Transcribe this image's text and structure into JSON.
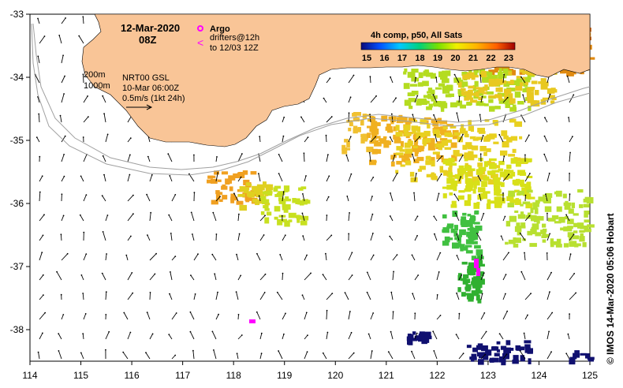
{
  "map": {
    "date": "12-Mar-2020",
    "time": "08Z",
    "argo_label": "Argo",
    "drifters_line1": "drifters@12h",
    "drifters_line2": "to 12/03 12Z",
    "contour_200": "200m",
    "contour_1000": "1000m",
    "current_source": "NRT00 GSL",
    "current_date": "10-Mar 06:00Z",
    "scale_label": "0.5m/s (1kt 24h)",
    "colorbar_title": "4h comp, p50, All Sats",
    "colorbar_ticks": [
      "15",
      "16",
      "17",
      "18",
      "19",
      "20",
      "21",
      "22",
      "23"
    ],
    "credit": "© IMOS 14-Mar-2020 05:06 Hobart",
    "lon_labels": [
      "114",
      "115",
      "116",
      "117",
      "118",
      "119",
      "120",
      "121",
      "122",
      "123",
      "124",
      "125"
    ],
    "lat_labels": [
      "-33",
      "-34",
      "-35",
      "-36",
      "-37",
      "-38"
    ],
    "colors": {
      "land": "#f9c597",
      "argo": "#ff00ff",
      "drifter": "#ff00ff",
      "contour": "#a0a0a0"
    }
  }
}
